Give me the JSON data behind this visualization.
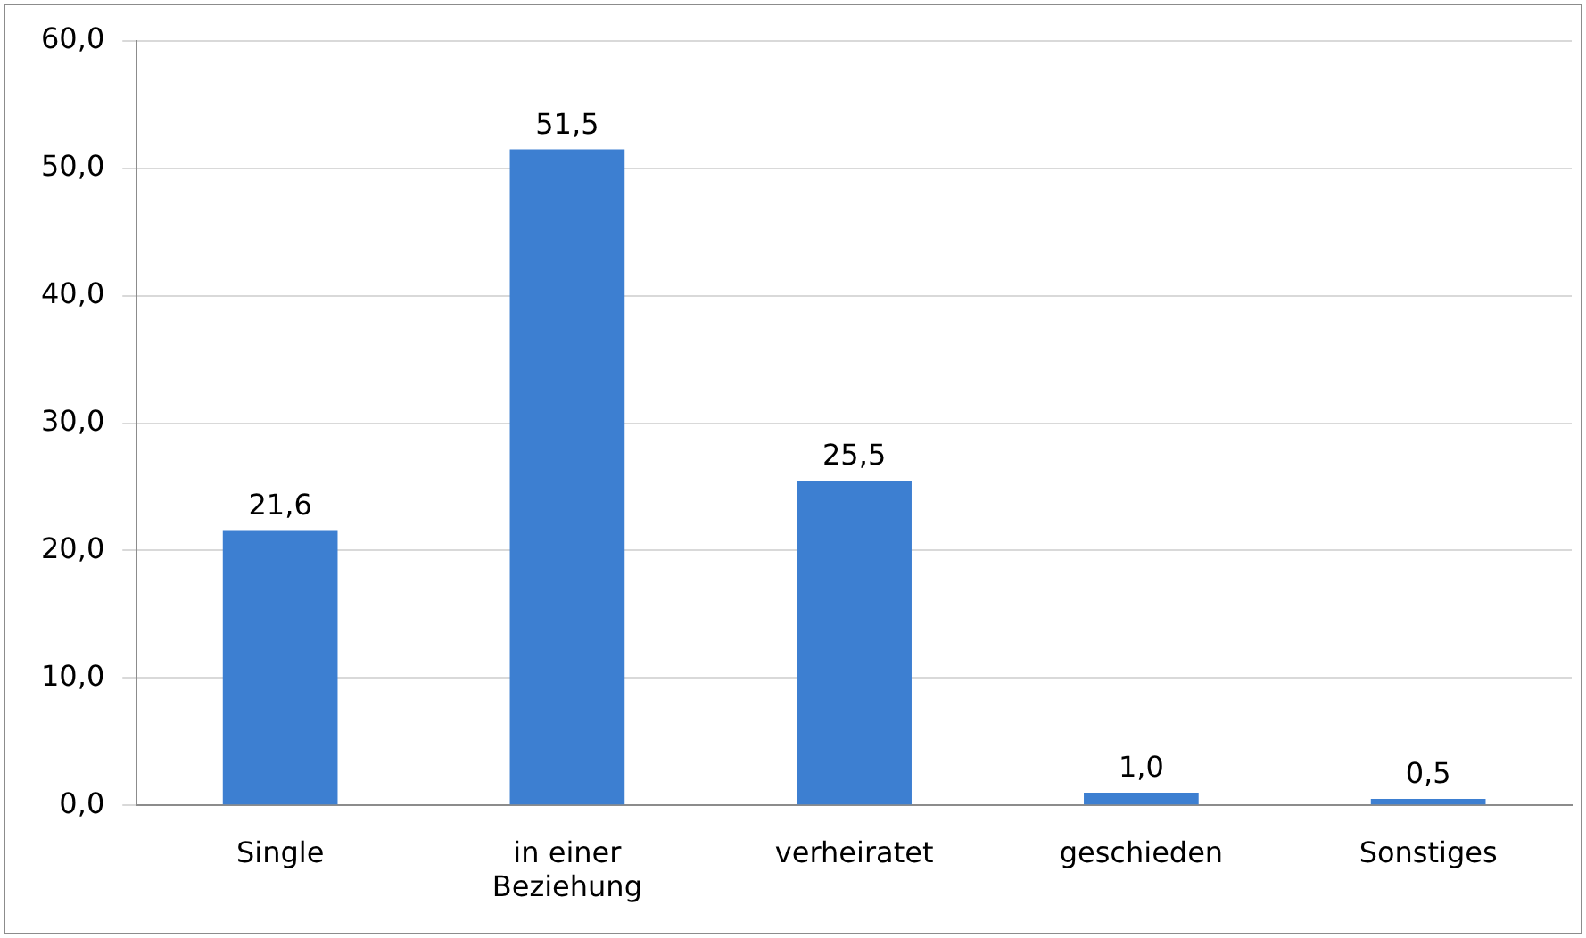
{
  "chart_data": {
    "type": "bar",
    "categories": [
      "Single",
      "in einer Beziehung",
      "verheiratet",
      "geschieden",
      "Sonstiges"
    ],
    "values": [
      21.6,
      51.5,
      25.5,
      1.0,
      0.5
    ],
    "value_labels": [
      "21,6",
      "51,5",
      "25,5",
      "1,0",
      "0,5"
    ],
    "color": "#3d7fd1",
    "ylim": [
      0,
      60
    ],
    "yticks": [
      {
        "value": 0,
        "label": "0,0"
      },
      {
        "value": 10,
        "label": "10,0"
      },
      {
        "value": 20,
        "label": "20,0"
      },
      {
        "value": 30,
        "label": "30,0"
      },
      {
        "value": 40,
        "label": "40,0"
      },
      {
        "value": 50,
        "label": "50,0"
      },
      {
        "value": 60,
        "label": "60,0"
      }
    ],
    "grid": "y",
    "legend": false
  }
}
